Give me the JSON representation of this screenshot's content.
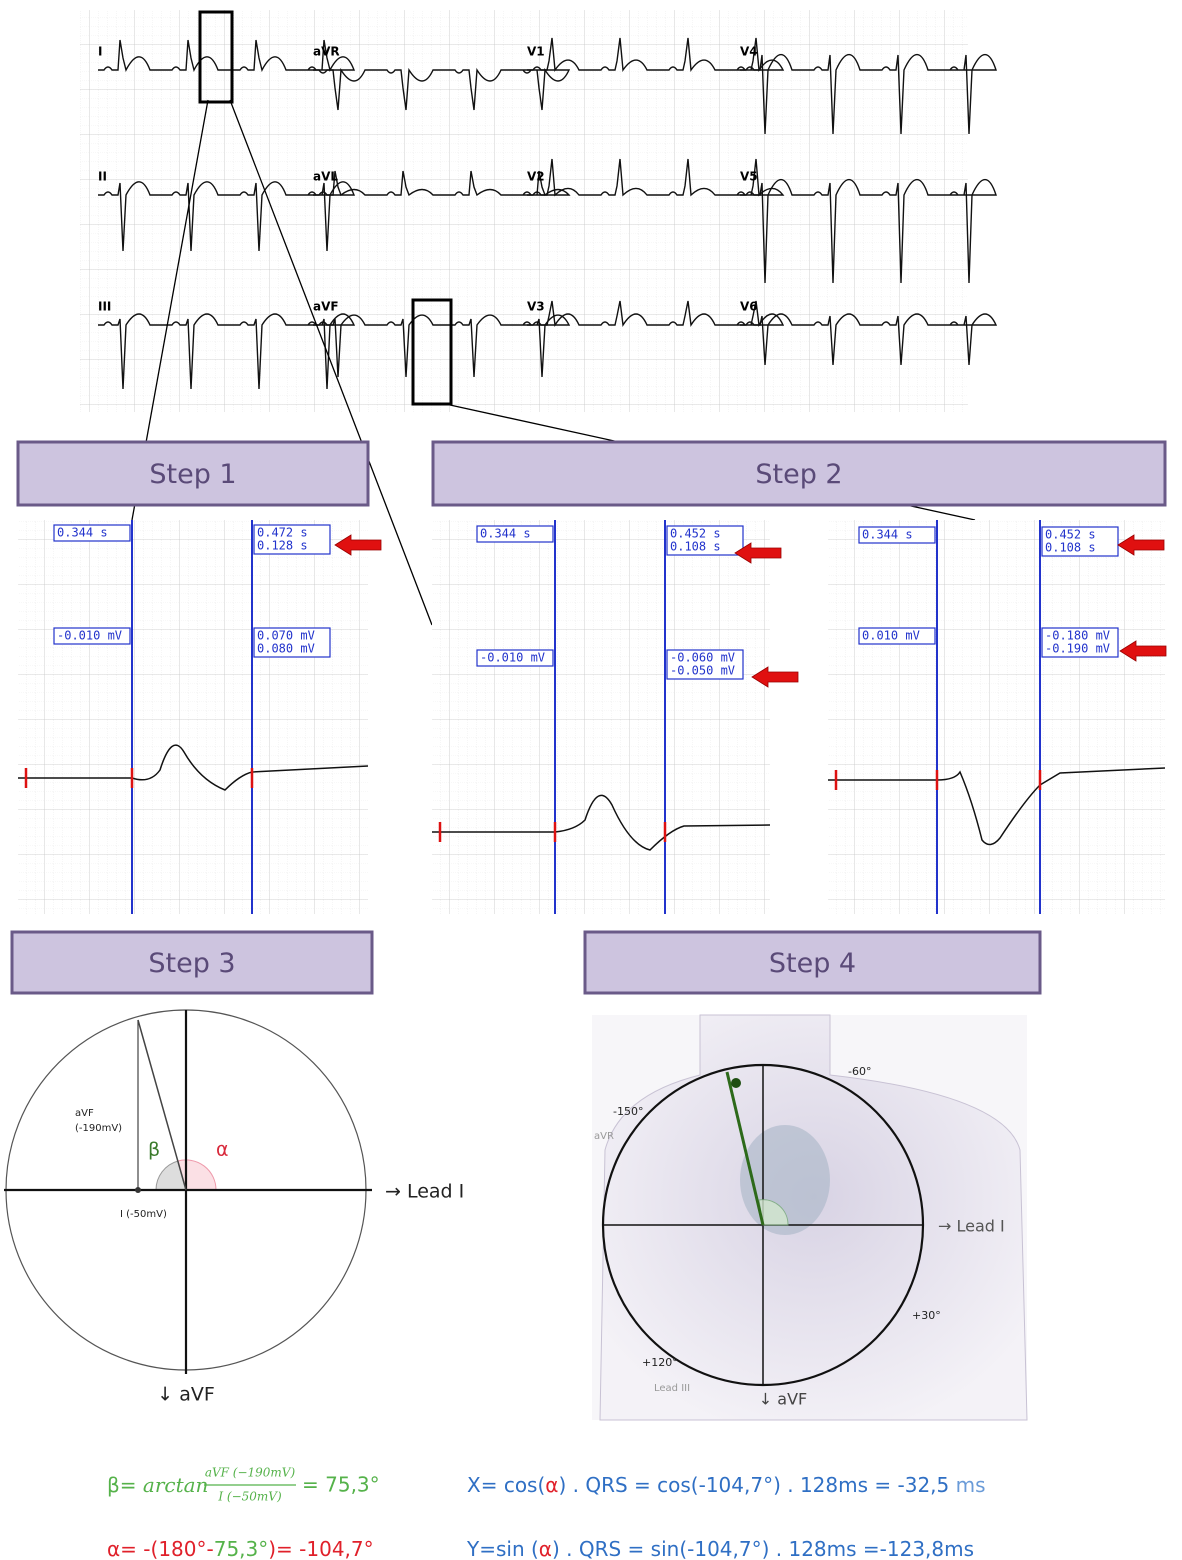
{
  "ecg": {
    "leads": [
      "I",
      "aVR",
      "V1",
      "V4",
      "II",
      "aVL",
      "V2",
      "V5",
      "III",
      "aVF",
      "V3",
      "V6"
    ]
  },
  "steps": [
    "Step 1",
    "Step 2",
    "Step 3",
    "Step 4"
  ],
  "panels": [
    {
      "t1": "0.344 s",
      "t2": "0.472 s",
      "dt": "0.128 s",
      "v1": "-0.010 mV",
      "v2": "0.070 mV",
      "v3": "0.080 mV"
    },
    {
      "t1": "0.344 s",
      "t2": "0.452 s",
      "dt": "0.108 s",
      "v1": "-0.010 mV",
      "v2": "-0.060 mV",
      "v3": "-0.050 mV"
    },
    {
      "t1": "0.344 s",
      "t2": "0.452 s",
      "dt": "0.108 s",
      "v1": "0.010 mV",
      "v2": "-0.180 mV",
      "v3": "-0.190 mV"
    }
  ],
  "step3": {
    "avf_label": "aVF",
    "avf_value": "(-190mV)",
    "beta": "β",
    "alpha": "α",
    "lead_i": "→ Lead I",
    "i_value": "I (-50mV)",
    "avf_axis": "↓ aVF"
  },
  "step4": {
    "minus60": "-60°",
    "minus150": "-150°",
    "avr": "aVR",
    "lead_i": "→ Lead I",
    "plus30": "+30°",
    "plus120": "+120°",
    "lead_iii": "Lead III",
    "avf_axis": "↓ aVF"
  },
  "formulas": {
    "beta": {
      "lhs": "β= ",
      "func": "arctan",
      "num": "aVF (−190mV)",
      "den": "I (−50mV)",
      "result": "= 75,3°"
    },
    "alpha": [
      "α= -(180°-",
      "75,3°",
      ")= -104,7°"
    ],
    "x": [
      "X= cos(",
      "α",
      ") . QRS = cos(-104,7°) . 128ms = -32,5",
      " ms"
    ],
    "y": [
      "Y=sin (",
      "α",
      ") . QRS = sin(-104,7°) . 128ms =-123,8ms"
    ]
  }
}
